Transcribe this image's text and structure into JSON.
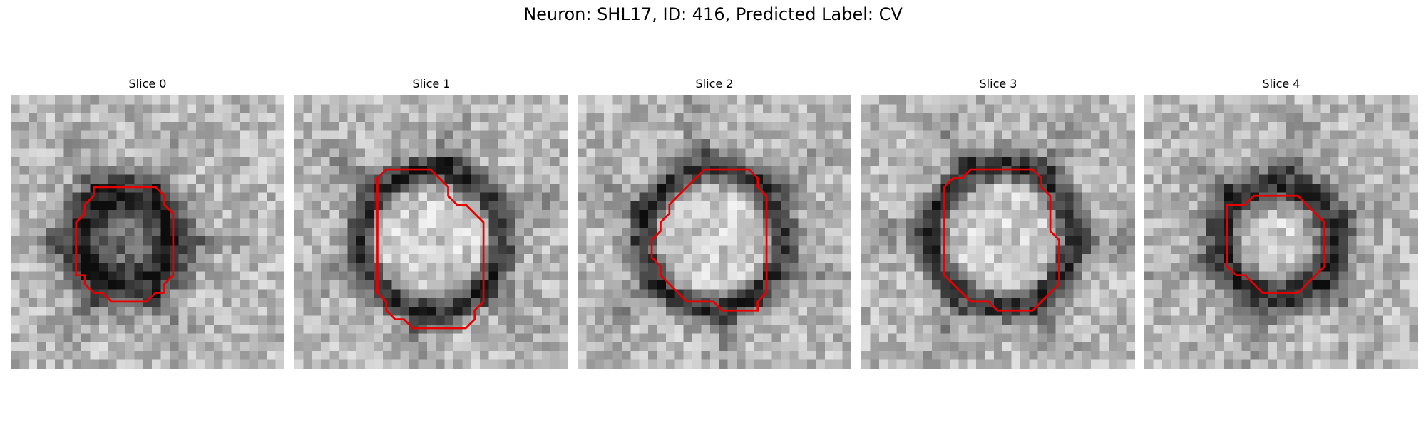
{
  "figure": {
    "title": "Neuron: SHL17, ID: 416, Predicted Label: CV",
    "outline_color": "#e80000"
  },
  "panels": [
    {
      "title": "Slice 0",
      "blob": "dark-filled",
      "outline": [
        [
          14.4,
          10.4
        ],
        [
          16.4,
          10.4
        ],
        [
          17.4,
          11.4
        ],
        [
          17.4,
          12.4
        ],
        [
          18.4,
          13.4
        ],
        [
          18.4,
          20.4
        ],
        [
          17.4,
          21.4
        ],
        [
          17.4,
          22.4
        ],
        [
          16.4,
          22.4
        ],
        [
          15.4,
          23.4
        ],
        [
          11.4,
          23.4
        ],
        [
          10.4,
          22.4
        ],
        [
          9.4,
          22.4
        ],
        [
          8.4,
          21.4
        ],
        [
          8.4,
          20.4
        ],
        [
          7.4,
          20.4
        ],
        [
          7.4,
          14.4
        ],
        [
          8.4,
          13.4
        ],
        [
          8.4,
          12.4
        ],
        [
          9.4,
          11.4
        ],
        [
          9.4,
          10.4
        ],
        [
          14.4,
          10.4
        ]
      ]
    },
    {
      "title": "Slice 1",
      "blob": "ring",
      "outline": [
        [
          15.4,
          8.4
        ],
        [
          16.4,
          9.4
        ],
        [
          17.4,
          10.4
        ],
        [
          17.4,
          11.4
        ],
        [
          18.4,
          12.4
        ],
        [
          19.4,
          12.4
        ],
        [
          20.4,
          13.4
        ],
        [
          21.4,
          14.4
        ],
        [
          21.4,
          23.4
        ],
        [
          20.4,
          24.4
        ],
        [
          20.4,
          25.4
        ],
        [
          19.4,
          26.4
        ],
        [
          13.4,
          26.4
        ],
        [
          12.4,
          25.4
        ],
        [
          11.4,
          25.4
        ],
        [
          10.4,
          24.4
        ],
        [
          10.4,
          23.4
        ],
        [
          9.4,
          22.4
        ],
        [
          9.4,
          21.4
        ],
        [
          9.4,
          9.4
        ],
        [
          10.4,
          8.4
        ],
        [
          15.4,
          8.4
        ]
      ]
    },
    {
      "title": "Slice 2",
      "blob": "ring",
      "outline": [
        [
          14.4,
          8.4
        ],
        [
          19.4,
          8.4
        ],
        [
          20.4,
          9.4
        ],
        [
          20.4,
          10.4
        ],
        [
          21.4,
          11.4
        ],
        [
          21.4,
          22.4
        ],
        [
          20.4,
          23.4
        ],
        [
          20.4,
          24.4
        ],
        [
          16.4,
          24.4
        ],
        [
          15.4,
          23.4
        ],
        [
          12.4,
          23.4
        ],
        [
          11.4,
          22.4
        ],
        [
          10.4,
          21.4
        ],
        [
          9.4,
          20.4
        ],
        [
          9.4,
          19.4
        ],
        [
          8.4,
          18.4
        ],
        [
          8.4,
          16.4
        ],
        [
          9.4,
          15.4
        ],
        [
          9.4,
          14.4
        ],
        [
          10.4,
          13.4
        ],
        [
          10.4,
          12.4
        ],
        [
          11.4,
          11.4
        ],
        [
          12.4,
          10.4
        ],
        [
          13.4,
          9.4
        ],
        [
          14.4,
          8.4
        ]
      ]
    },
    {
      "title": "Slice 3",
      "blob": "ring",
      "outline": [
        [
          12.4,
          8.4
        ],
        [
          19.4,
          8.4
        ],
        [
          20.4,
          9.4
        ],
        [
          20.4,
          10.4
        ],
        [
          21.4,
          11.4
        ],
        [
          21.4,
          15.4
        ],
        [
          22.4,
          16.4
        ],
        [
          22.4,
          21.4
        ],
        [
          21.4,
          22.4
        ],
        [
          20.4,
          23.4
        ],
        [
          19.4,
          24.4
        ],
        [
          15.4,
          24.4
        ],
        [
          14.4,
          23.4
        ],
        [
          12.4,
          23.4
        ],
        [
          11.4,
          22.4
        ],
        [
          10.4,
          21.4
        ],
        [
          9.4,
          20.4
        ],
        [
          9.4,
          10.4
        ],
        [
          10.4,
          9.4
        ],
        [
          11.4,
          9.4
        ],
        [
          12.4,
          8.4
        ]
      ]
    },
    {
      "title": "Slice 4",
      "blob": "thick-ring",
      "outline": [
        [
          13.4,
          11.4
        ],
        [
          17.4,
          11.4
        ],
        [
          18.4,
          12.4
        ],
        [
          19.4,
          13.4
        ],
        [
          20.4,
          14.4
        ],
        [
          20.4,
          19.4
        ],
        [
          19.4,
          20.4
        ],
        [
          18.4,
          21.4
        ],
        [
          17.4,
          22.4
        ],
        [
          13.4,
          22.4
        ],
        [
          12.4,
          21.4
        ],
        [
          11.4,
          20.4
        ],
        [
          10.4,
          20.4
        ],
        [
          9.4,
          19.4
        ],
        [
          9.4,
          12.4
        ],
        [
          10.4,
          12.4
        ],
        [
          11.4,
          12.4
        ],
        [
          12.4,
          11.4
        ],
        [
          13.4,
          11.4
        ]
      ]
    }
  ]
}
